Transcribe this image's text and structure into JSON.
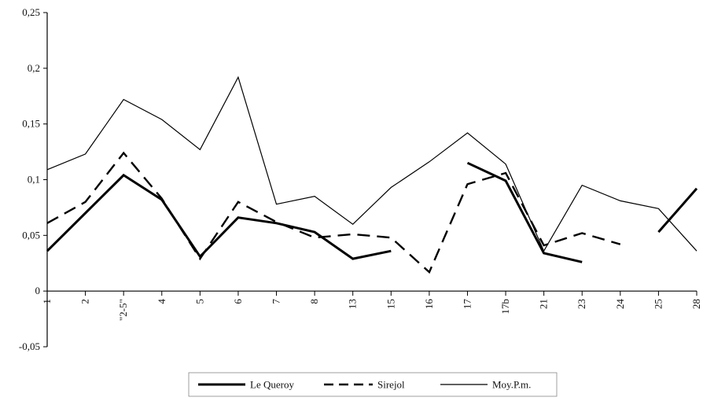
{
  "chart_data": {
    "type": "line",
    "title": "",
    "xlabel": "",
    "ylabel": "",
    "categories": [
      "1",
      "2",
      "\"2-5\"",
      "4",
      "5",
      "6",
      "7",
      "8",
      "13",
      "15",
      "16",
      "17",
      "17b",
      "21",
      "23",
      "24",
      "25",
      "28"
    ],
    "y_tick_labels": [
      "0,25",
      "0,2",
      "0,15",
      "0,1",
      "0,05",
      "0",
      "-0,05"
    ],
    "y_ticks": [
      0.25,
      0.2,
      0.15,
      0.1,
      0.05,
      0,
      -0.05
    ],
    "ylim": [
      -0.05,
      0.25
    ],
    "grid": false,
    "legend_position": "bottom",
    "series": [
      {
        "name": "Le Queroy",
        "style": "thick-solid",
        "color": "#000000",
        "values": [
          0.036,
          0.07,
          0.104,
          0.082,
          0.031,
          0.066,
          0.061,
          0.053,
          0.029,
          0.036,
          null,
          0.115,
          0.099,
          0.034,
          0.026,
          null,
          0.053,
          0.092
        ]
      },
      {
        "name": "Sirejol",
        "style": "dashed",
        "color": "#000000",
        "values": [
          0.061,
          0.08,
          0.124,
          0.083,
          0.029,
          0.08,
          0.062,
          0.048,
          0.051,
          0.048,
          0.017,
          0.096,
          0.106,
          0.041,
          0.052,
          0.042,
          null,
          null
        ]
      },
      {
        "name": "Moy.P.m.",
        "style": "thin-solid",
        "color": "#000000",
        "values": [
          0.109,
          0.123,
          0.172,
          0.154,
          0.127,
          0.192,
          0.078,
          0.085,
          0.06,
          0.093,
          0.116,
          0.142,
          0.114,
          0.036,
          0.095,
          0.081,
          0.074,
          0.036
        ]
      }
    ]
  }
}
